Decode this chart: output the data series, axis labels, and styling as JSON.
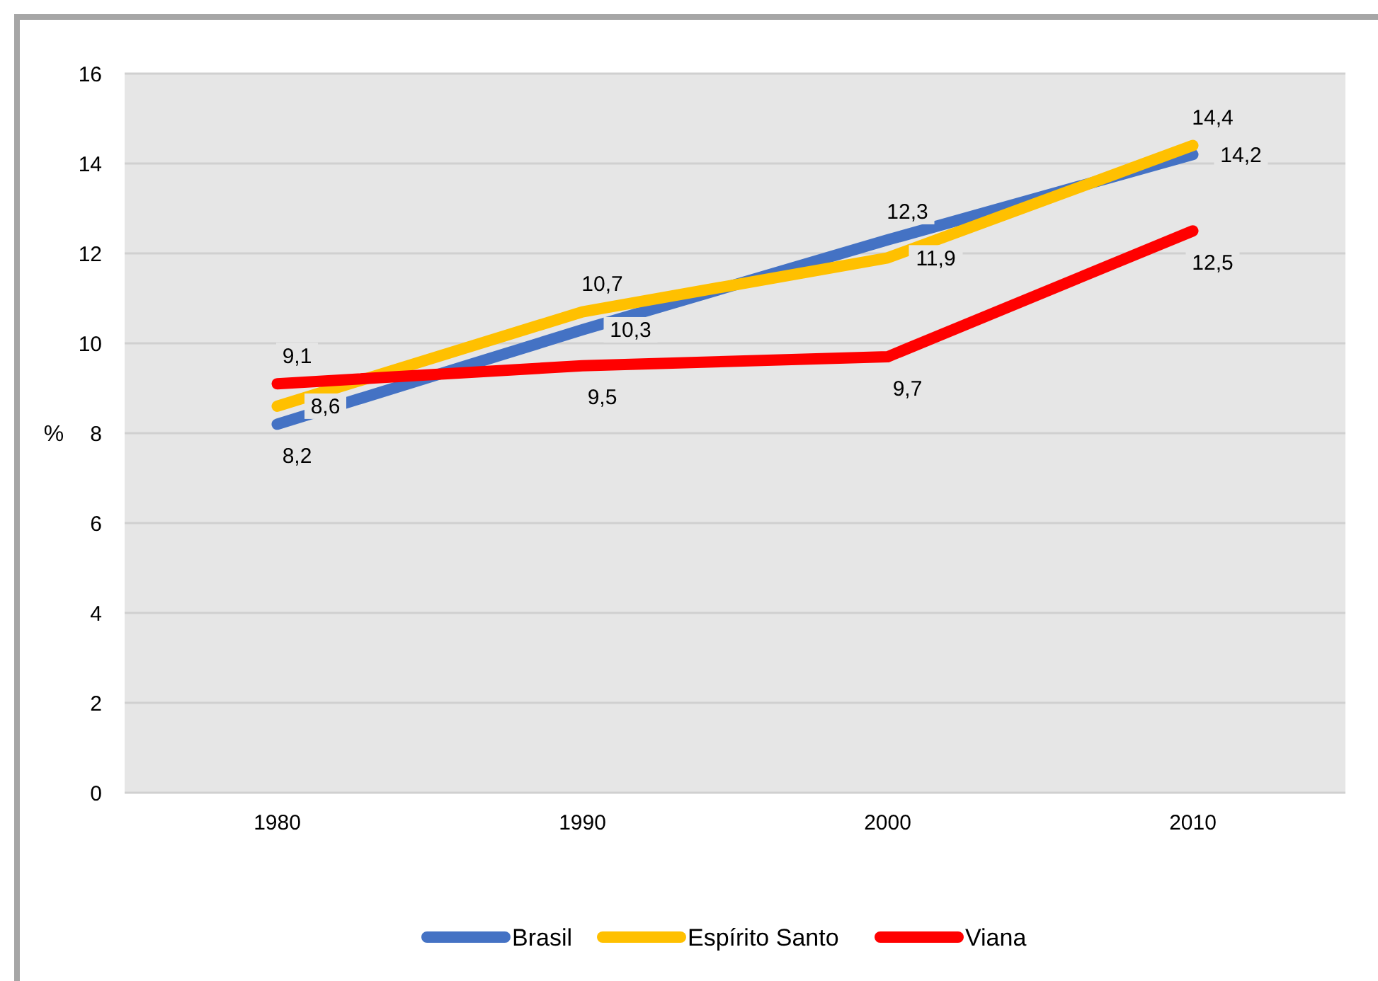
{
  "chart_data": {
    "type": "line",
    "ylabel": "%",
    "categories": [
      "1980",
      "1990",
      "2000",
      "2010"
    ],
    "series": [
      {
        "name": "Brasil",
        "color": "#4472c4",
        "values": [
          8.2,
          10.3,
          12.3,
          14.2
        ],
        "value_labels": [
          "8,2",
          "10,3",
          "12,3",
          "14,2"
        ]
      },
      {
        "name": "Espírito Santo",
        "color": "#ffc000",
        "values": [
          8.6,
          10.7,
          11.9,
          14.4
        ],
        "value_labels": [
          "8,6",
          "10,7",
          "11,9",
          "14,4"
        ]
      },
      {
        "name": "Viana",
        "color": "#ff0000",
        "values": [
          9.1,
          9.5,
          9.7,
          12.5
        ],
        "value_labels": [
          "9,1",
          "9,5",
          "9,7",
          "12,5"
        ]
      }
    ],
    "ylim": [
      0,
      16
    ],
    "yticks": [
      0,
      2,
      4,
      6,
      8,
      10,
      12,
      14,
      16
    ],
    "grid": "y",
    "legend": "bottom",
    "marker": "none",
    "line_style": "solid"
  }
}
